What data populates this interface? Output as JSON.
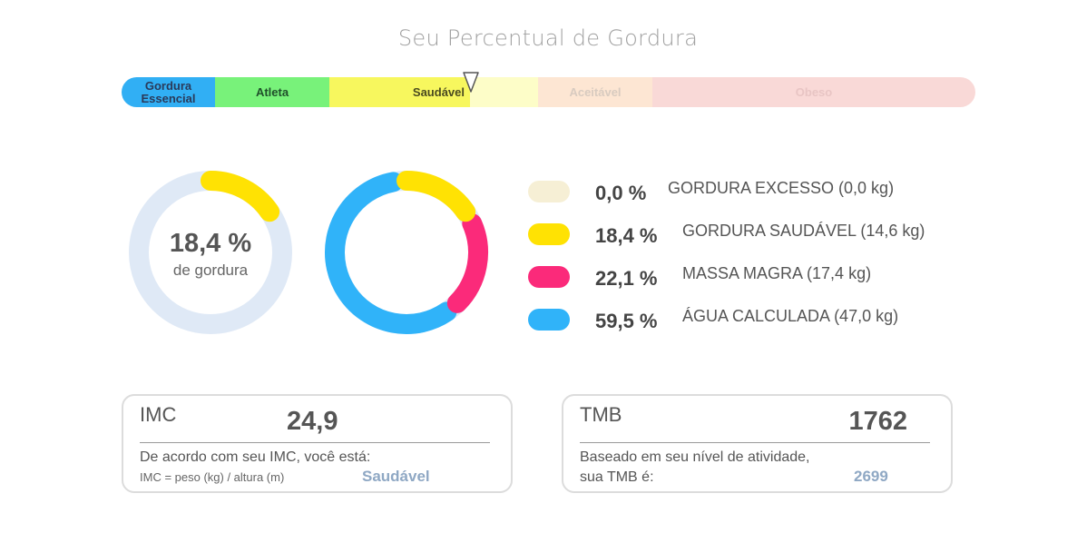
{
  "title": "Seu Percentual de Gordura",
  "scale": {
    "essencial": "Gordura Essencial",
    "atleta": "Atleta",
    "saudavel": "Saudável",
    "aceitavel": "Aceitável",
    "obeso": "Obeso",
    "marker_percent": 18.4
  },
  "summary": {
    "value": "18,4 %",
    "label": "de gordura"
  },
  "legend": [
    {
      "pct": "0,0 %",
      "label": "GORDURA EXCESSO (0,0 kg)",
      "color": "#f6efd5"
    },
    {
      "pct": "18,4 %",
      "label": "GORDURA SAUDÁVEL (14,6 kg)",
      "color": "#ffe203"
    },
    {
      "pct": "22,1 %",
      "label": "MASSA MAGRA (17,4 kg)",
      "color": "#fb2a7a"
    },
    {
      "pct": "59,5 %",
      "label": "ÁGUA CALCULADA (47,0 kg)",
      "color": "#30b3f9"
    }
  ],
  "imc": {
    "title": "IMC",
    "value": "24,9",
    "description": "De acordo com seu IMC, você está:",
    "formula": "IMC = peso (kg) / altura (m)",
    "result": "Saudável"
  },
  "tmb": {
    "title": "TMB",
    "value": "1762",
    "description_line1": "Baseado em seu nível de atividade,",
    "description_line2": "sua TMB é:",
    "result": "2699"
  },
  "colors": {
    "track": "#dfe9f6",
    "fat": "#ffe203",
    "lean": "#fb2a7a",
    "water": "#30b3f9"
  }
}
